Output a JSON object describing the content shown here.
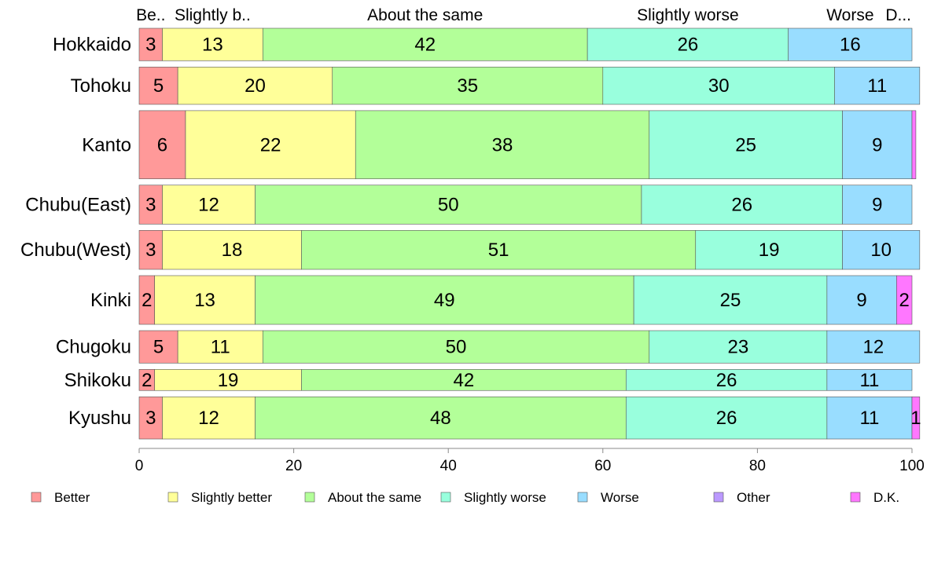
{
  "chart_data": {
    "type": "bar",
    "orientation": "horizontal",
    "stacked": true,
    "categories": [
      "Hokkaido",
      "Tohoku",
      "Kanto",
      "Chubu(East)",
      "Chubu(West)",
      "Kinki",
      "Chugoku",
      "Shikoku",
      "Kyushu"
    ],
    "series": [
      {
        "name": "Better",
        "color": "#ff9999",
        "values": [
          3,
          5,
          6,
          3,
          3,
          2,
          5,
          2,
          3
        ]
      },
      {
        "name": "Slightly better",
        "color": "#ffff99",
        "values": [
          13,
          20,
          22,
          12,
          18,
          13,
          11,
          19,
          12
        ]
      },
      {
        "name": "About the same",
        "color": "#b3ff99",
        "values": [
          42,
          35,
          38,
          50,
          51,
          49,
          50,
          42,
          48
        ]
      },
      {
        "name": "Slightly worse",
        "color": "#99ffdd",
        "values": [
          26,
          30,
          25,
          26,
          19,
          25,
          23,
          26,
          26
        ]
      },
      {
        "name": "Worse",
        "color": "#99ddff",
        "values": [
          16,
          11,
          9,
          9,
          10,
          9,
          12,
          11,
          11
        ]
      },
      {
        "name": "Other",
        "color": "#bb99ff",
        "values": [
          0,
          0,
          0,
          0,
          0,
          0,
          0,
          0,
          0
        ]
      },
      {
        "name": "D.K.",
        "color": "#ff77ff",
        "values": [
          0,
          0,
          0.5,
          0,
          0,
          2,
          0,
          0,
          1
        ]
      }
    ],
    "segment_labels": [
      [
        "3",
        "13",
        "42",
        "26",
        "16",
        "",
        ""
      ],
      [
        "5",
        "20",
        "35",
        "30",
        "11",
        "",
        ""
      ],
      [
        "6",
        "22",
        "38",
        "25",
        "9",
        "",
        ""
      ],
      [
        "3",
        "12",
        "50",
        "26",
        "9",
        "",
        ""
      ],
      [
        "3",
        "18",
        "51",
        "19",
        "10",
        "",
        ""
      ],
      [
        "2",
        "13",
        "49",
        "25",
        "9",
        "",
        "2"
      ],
      [
        "5",
        "11",
        "50",
        "23",
        "12",
        "",
        ""
      ],
      [
        "2",
        "19",
        "42",
        "26",
        "11",
        "",
        ""
      ],
      [
        "3",
        "12",
        "48",
        "26",
        "11",
        "",
        "1"
      ]
    ],
    "bar_weights": [
      1,
      1.15,
      2.1,
      1.2,
      1.2,
      1.5,
      1.0,
      0.65,
      1.3
    ],
    "top_labels": [
      "Be..",
      "Slightly b..",
      "About the same",
      "Slightly worse",
      "Worse",
      "",
      "D..."
    ],
    "xlim": [
      0,
      100
    ],
    "xticks": [
      0,
      20,
      40,
      60,
      80,
      100
    ],
    "legend_position": "bottom",
    "grid": false,
    "title": "",
    "xlabel": "",
    "ylabel": ""
  }
}
